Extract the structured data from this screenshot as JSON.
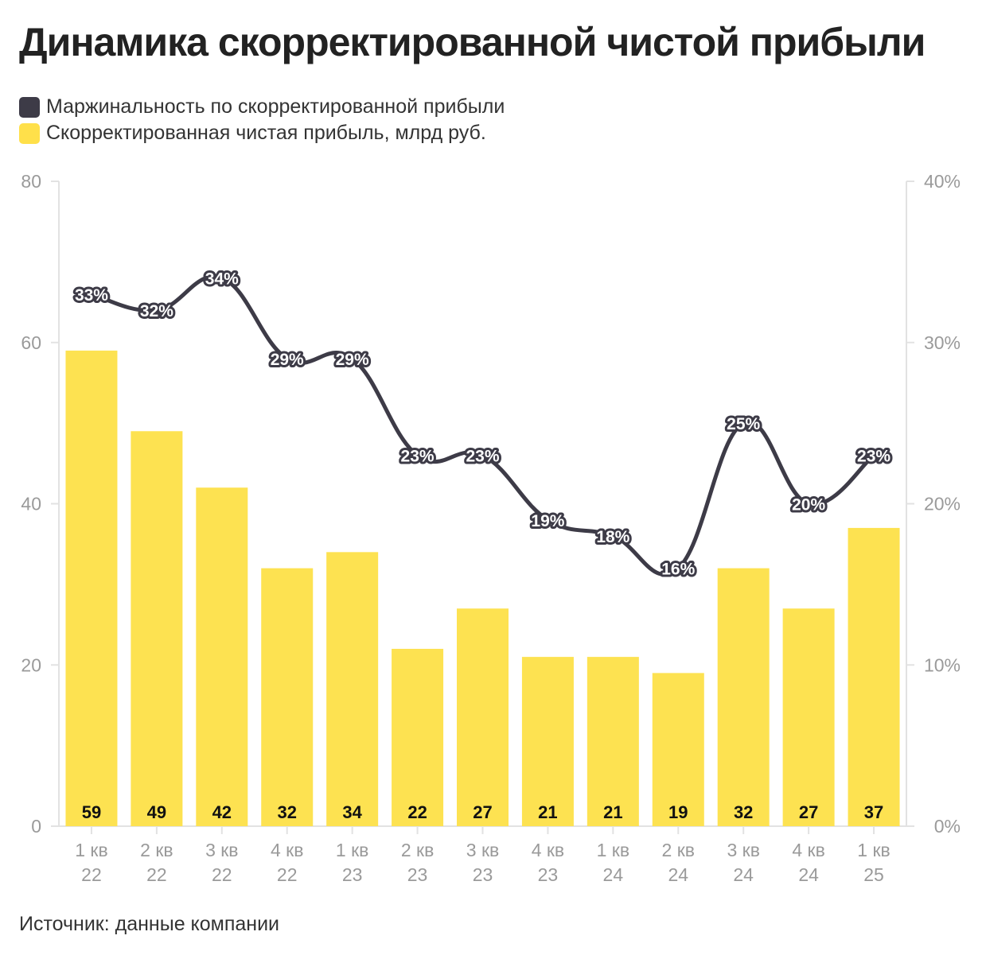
{
  "title": "Динамика скорректированной чистой прибыли",
  "legend": [
    {
      "label": "Маржинальность по скорректированной прибыли",
      "color": "#3d3b47"
    },
    {
      "label": "Скорректированная чистая прибыль, млрд руб.",
      "color": "#ffe04a"
    }
  ],
  "source": "Источник: данные компании",
  "chart_data": {
    "type": "bar",
    "categories": [
      [
        "1 кв",
        "22"
      ],
      [
        "2 кв",
        "22"
      ],
      [
        "3 кв",
        "22"
      ],
      [
        "4 кв",
        "22"
      ],
      [
        "1 кв",
        "23"
      ],
      [
        "2 кв",
        "23"
      ],
      [
        "3 кв",
        "23"
      ],
      [
        "4 кв",
        "23"
      ],
      [
        "1 кв",
        "24"
      ],
      [
        "2 кв",
        "24"
      ],
      [
        "3 кв",
        "24"
      ],
      [
        "4 кв",
        "24"
      ],
      [
        "1 кв",
        "25"
      ]
    ],
    "series": [
      {
        "name": "Скорректированная чистая прибыль, млрд руб.",
        "type": "bar",
        "axis": "left",
        "color": "#fde251",
        "values": [
          59,
          49,
          42,
          32,
          34,
          22,
          27,
          21,
          21,
          19,
          32,
          27,
          37
        ],
        "labels": [
          "59",
          "49",
          "42",
          "32",
          "34",
          "22",
          "27",
          "21",
          "21",
          "19",
          "32",
          "27",
          "37"
        ]
      },
      {
        "name": "Маржинальность по скорректированной прибыли",
        "type": "line",
        "axis": "right",
        "color": "#3d3b47",
        "values": [
          33,
          32,
          34,
          29,
          29,
          23,
          23,
          19,
          18,
          16,
          25,
          20,
          23
        ],
        "labels": [
          "33%",
          "32%",
          "34%",
          "29%",
          "29%",
          "23%",
          "23%",
          "19%",
          "18%",
          "16%",
          "25%",
          "20%",
          "23%"
        ]
      }
    ],
    "y_left": {
      "min": 0,
      "max": 80,
      "ticks": [
        "0",
        "20",
        "40",
        "60",
        "80"
      ]
    },
    "y_right": {
      "min": 0,
      "max": 40,
      "ticks": [
        "0%",
        "10%",
        "20%",
        "30%",
        "40%"
      ]
    },
    "grid": false
  }
}
